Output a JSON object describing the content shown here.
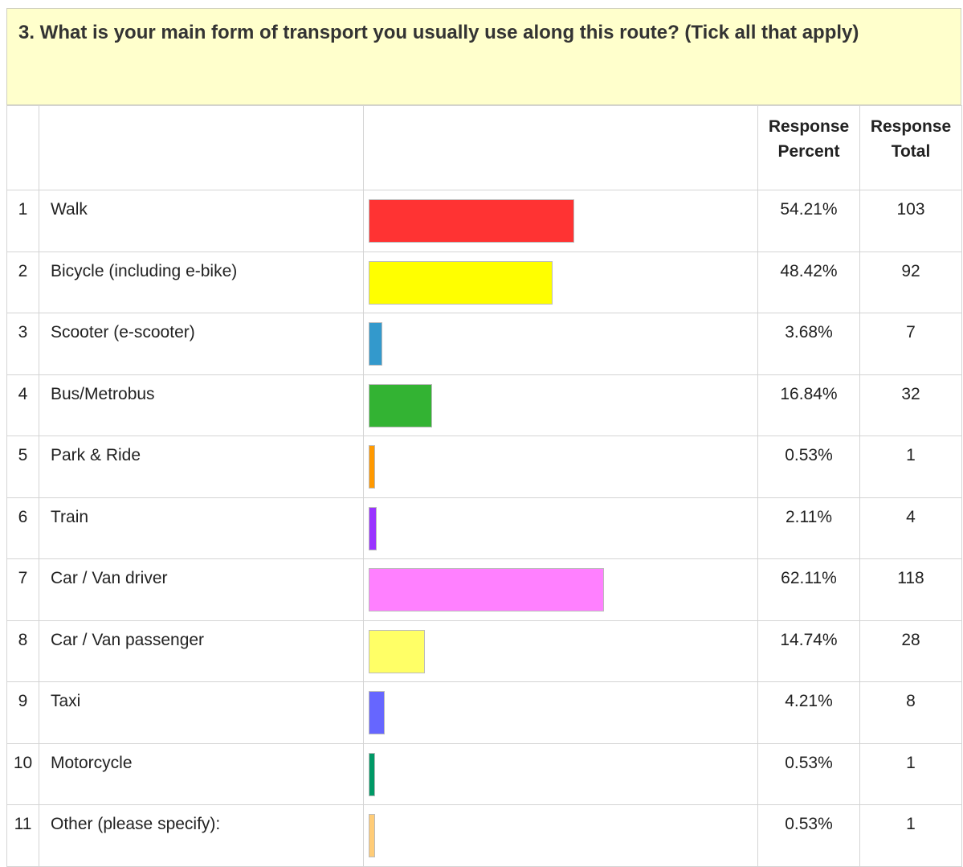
{
  "header": {
    "title": "3. What is your main form of transport you usually use along this route? (Tick all that apply)"
  },
  "table": {
    "columns": [
      "Response Percent",
      "Response Total"
    ],
    "rows": [
      {
        "index": "1",
        "label": "Walk",
        "percent": 54.21,
        "percent_label": "54.21%",
        "total": 103,
        "color": "#ff3333"
      },
      {
        "index": "2",
        "label": "Bicycle (including e-bike)",
        "percent": 48.42,
        "percent_label": "48.42%",
        "total": 92,
        "color": "#ffff00"
      },
      {
        "index": "3",
        "label": "Scooter (e-scooter)",
        "percent": 3.68,
        "percent_label": "3.68%",
        "total": 7,
        "color": "#3399cc"
      },
      {
        "index": "4",
        "label": "Bus/Metrobus",
        "percent": 16.84,
        "percent_label": "16.84%",
        "total": 32,
        "color": "#33b333"
      },
      {
        "index": "5",
        "label": "Park & Ride",
        "percent": 0.53,
        "percent_label": "0.53%",
        "total": 1,
        "color": "#ff9900"
      },
      {
        "index": "6",
        "label": "Train",
        "percent": 2.11,
        "percent_label": "2.11%",
        "total": 4,
        "color": "#9933ff"
      },
      {
        "index": "7",
        "label": "Car / Van driver",
        "percent": 62.11,
        "percent_label": "62.11%",
        "total": 118,
        "color": "#ff80ff"
      },
      {
        "index": "8",
        "label": "Car / Van passenger",
        "percent": 14.74,
        "percent_label": "14.74%",
        "total": 28,
        "color": "#ffff66"
      },
      {
        "index": "9",
        "label": "Taxi",
        "percent": 4.21,
        "percent_label": "4.21%",
        "total": 8,
        "color": "#6666ff"
      },
      {
        "index": "10",
        "label": "Motorcycle",
        "percent": 0.53,
        "percent_label": "0.53%",
        "total": 1,
        "color": "#009966"
      },
      {
        "index": "11",
        "label": "Other (please specify):",
        "percent": 0.53,
        "percent_label": "0.53%",
        "total": 1,
        "color": "#ffcc77"
      }
    ]
  }
}
